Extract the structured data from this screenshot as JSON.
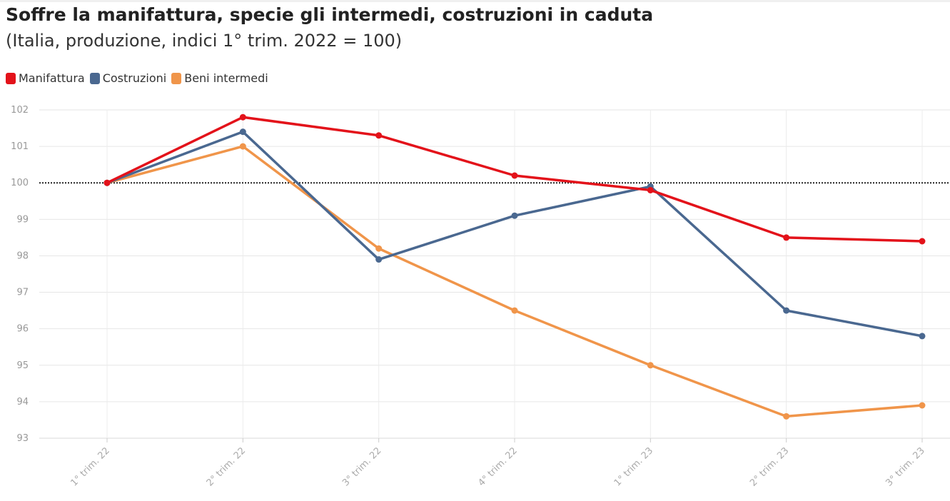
{
  "chart_data": {
    "type": "line",
    "title": "Soffre la manifattura, specie gli intermedi, costruzioni in caduta",
    "subtitle": "(Italia, produzione, indici 1° trim. 2022 = 100)",
    "categories": [
      "1° trim. 22",
      "2° trim. 22",
      "3° trim. 22",
      "4° trim. 22",
      "1° trim. 23",
      "2° trim. 23",
      "3° trim. 23"
    ],
    "series": [
      {
        "name": "Manifattura",
        "color": "#e3121a",
        "values": [
          100,
          101.8,
          101.3,
          100.2,
          99.8,
          98.5,
          98.4
        ]
      },
      {
        "name": "Costruzioni",
        "color": "#4a6890",
        "values": [
          100,
          101.4,
          97.9,
          99.1,
          99.9,
          96.5,
          95.8
        ]
      },
      {
        "name": "Beni intermedi",
        "color": "#f0954a",
        "values": [
          100,
          101.0,
          98.2,
          96.5,
          95.0,
          93.6,
          93.9
        ]
      }
    ],
    "ylim": [
      93,
      102
    ],
    "yticks": [
      93,
      94,
      95,
      96,
      97,
      98,
      99,
      100,
      101,
      102
    ],
    "reference_line": 100,
    "grid": true,
    "legend_position": "top-left"
  }
}
